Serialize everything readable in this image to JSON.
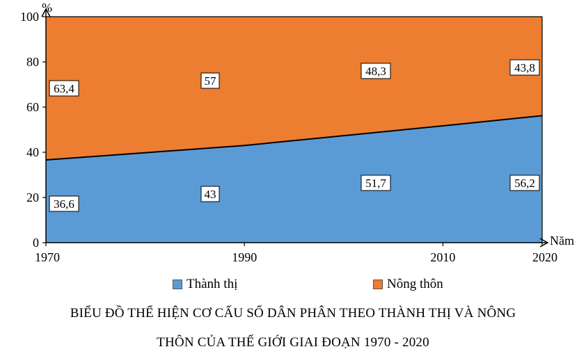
{
  "chart_data": {
    "type": "area",
    "stacked": true,
    "x": [
      1970,
      1990,
      2010,
      2020
    ],
    "x_tick_labels": [
      "1970",
      "1990",
      "2010",
      "2020"
    ],
    "series": [
      {
        "name": "Thành thị",
        "values": [
          36.6,
          43,
          51.7,
          56.2
        ],
        "labels": [
          "36,6",
          "43",
          "51,7",
          "56,2"
        ],
        "color": "#5b9bd5"
      },
      {
        "name": "Nông thôn",
        "values": [
          63.4,
          57,
          48.3,
          43.8
        ],
        "labels": [
          "63,4",
          "57",
          "48,3",
          "43,8"
        ],
        "color": "#ed7d31"
      }
    ],
    "ylim": [
      0,
      100
    ],
    "y_ticks": [
      0,
      20,
      40,
      60,
      80,
      100
    ],
    "y_tick_labels": [
      "0",
      "20",
      "40",
      "60",
      "80",
      "100"
    ],
    "ylabel": "%",
    "xlabel": "Năm",
    "legend_position": "bottom",
    "grid": false,
    "title_lines": [
      "BIỂU ĐỒ THỂ HIỆN CƠ CẤU SỐ DÂN PHÂN THEO THÀNH THỊ VÀ NÔNG",
      "THÔN CỦA THẾ GIỚI GIAI ĐOẠN 1970 - 2020"
    ]
  }
}
